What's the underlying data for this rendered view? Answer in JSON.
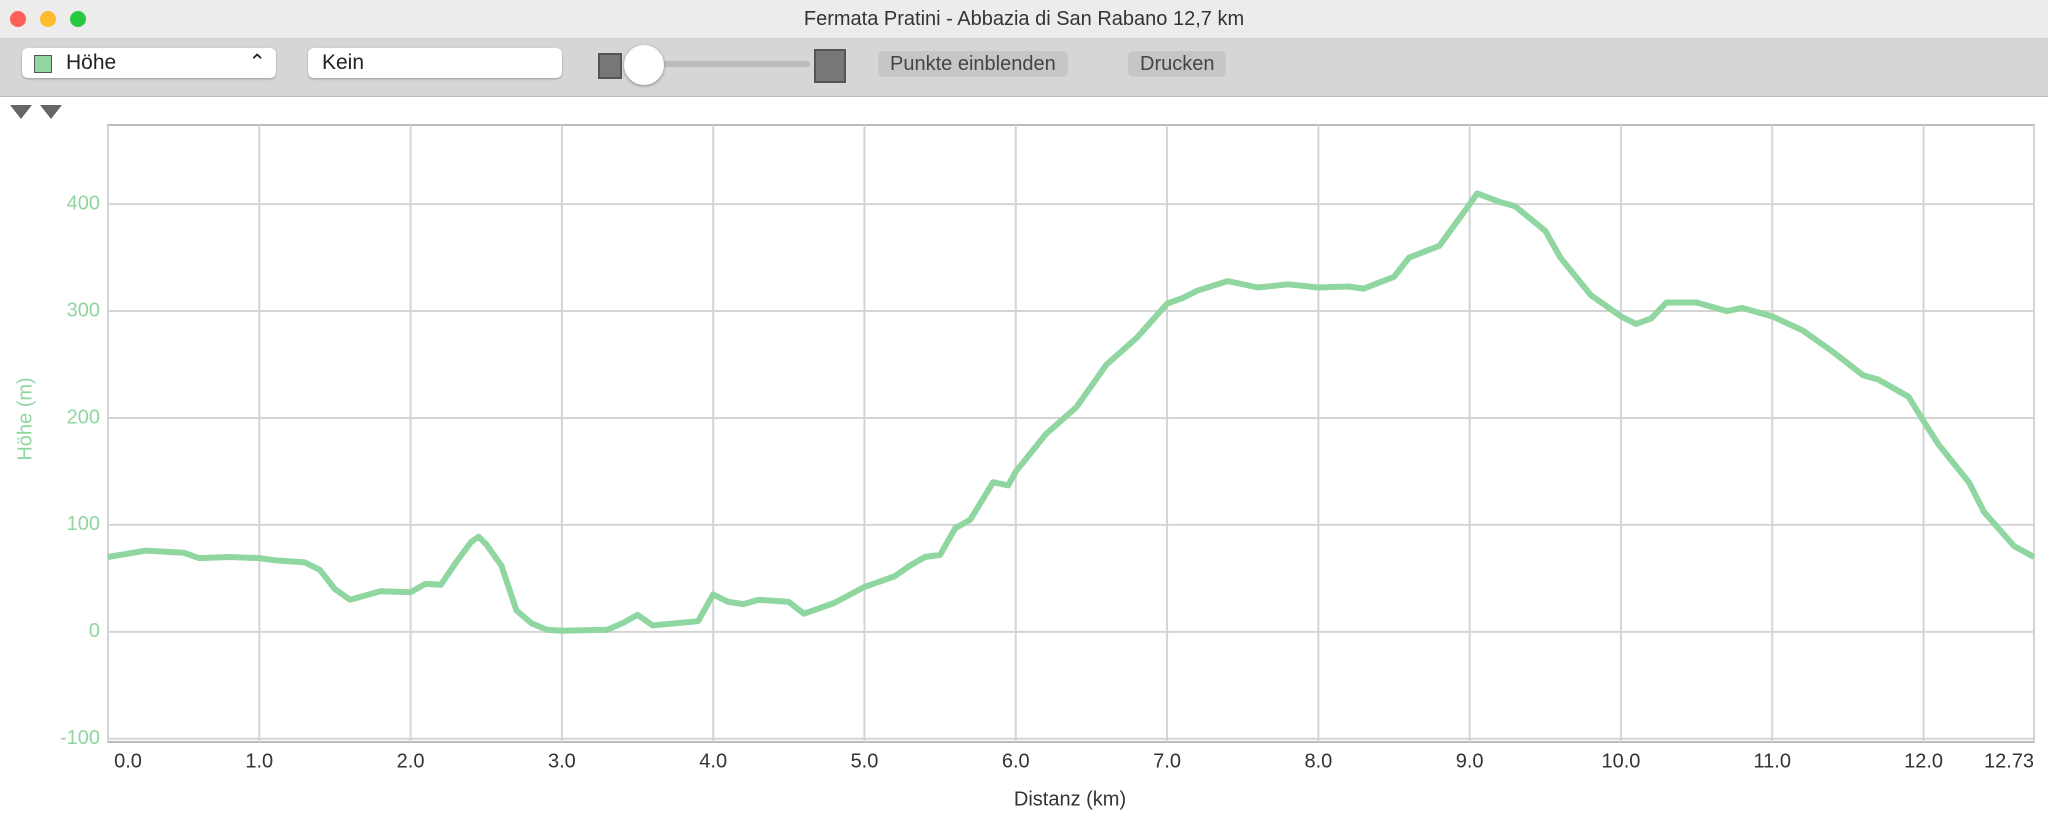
{
  "window": {
    "title": "Fermata Pratini - Abbazia di San Rabano 12,7 km"
  },
  "toolbar": {
    "series_select": "Höhe",
    "compare_select": "Kein",
    "buttons": [
      "Punkte einblenden",
      "Drucken"
    ]
  },
  "chart_data": {
    "type": "line",
    "x_label": "Distanz (km)",
    "y_label": "Höhe (m)",
    "xlim": [
      0,
      12.73
    ],
    "ylim": [
      -103,
      474
    ],
    "xticks": [
      {
        "value": 0,
        "label": "0.0"
      },
      {
        "value": 1,
        "label": "1.0"
      },
      {
        "value": 2,
        "label": "2.0"
      },
      {
        "value": 3,
        "label": "3.0"
      },
      {
        "value": 4,
        "label": "4.0"
      },
      {
        "value": 5,
        "label": "5.0"
      },
      {
        "value": 6,
        "label": "6.0"
      },
      {
        "value": 7,
        "label": "7.0"
      },
      {
        "value": 8,
        "label": "8.0"
      },
      {
        "value": 9,
        "label": "9.0"
      },
      {
        "value": 10,
        "label": "10.0"
      },
      {
        "value": 11,
        "label": "11.0"
      },
      {
        "value": 12,
        "label": "12.0"
      },
      12.73
    ],
    "yticks": [
      -100,
      0,
      100,
      200,
      300,
      400
    ],
    "grid": true,
    "series": [
      {
        "name": "Höhe",
        "color": "#8fd6a0",
        "x": [
          0,
          0.25,
          0.5,
          0.6,
          0.8,
          1.0,
          1.1,
          1.3,
          1.4,
          1.5,
          1.6,
          1.7,
          1.8,
          2.0,
          2.1,
          2.2,
          2.3,
          2.4,
          2.45,
          2.5,
          2.6,
          2.7,
          2.8,
          2.9,
          3.0,
          3.3,
          3.4,
          3.5,
          3.6,
          3.9,
          4.0,
          4.1,
          4.2,
          4.3,
          4.5,
          4.6,
          4.8,
          5.0,
          5.2,
          5.3,
          5.4,
          5.5,
          5.6,
          5.7,
          5.85,
          5.95,
          6.0,
          6.2,
          6.4,
          6.6,
          6.8,
          7.0,
          7.1,
          7.2,
          7.4,
          7.6,
          7.8,
          8.0,
          8.2,
          8.3,
          8.5,
          8.6,
          8.8,
          9.0,
          9.05,
          9.2,
          9.3,
          9.5,
          9.6,
          9.8,
          10.0,
          10.1,
          10.2,
          10.3,
          10.5,
          10.7,
          10.8,
          11.0,
          11.2,
          11.4,
          11.6,
          11.7,
          11.9,
          12.0,
          12.1,
          12.3,
          12.4,
          12.6,
          12.73
        ],
        "values": [
          70,
          76,
          74,
          69,
          70,
          69,
          67,
          65,
          58,
          40,
          30,
          34,
          38,
          37,
          45,
          44,
          65,
          84,
          89,
          82,
          62,
          20,
          8,
          2,
          1,
          2,
          8,
          16,
          6,
          10,
          35,
          28,
          26,
          30,
          28,
          17,
          27,
          42,
          52,
          62,
          70,
          72,
          97,
          105,
          140,
          137,
          150,
          185,
          210,
          250,
          275,
          307,
          312,
          319,
          328,
          322,
          325,
          322,
          323,
          321,
          332,
          350,
          361,
          400,
          410,
          402,
          398,
          375,
          350,
          315,
          295,
          288,
          293,
          308,
          308,
          300,
          303,
          295,
          282,
          262,
          240,
          236,
          220,
          197,
          175,
          140,
          112,
          80,
          70
        ]
      }
    ]
  }
}
